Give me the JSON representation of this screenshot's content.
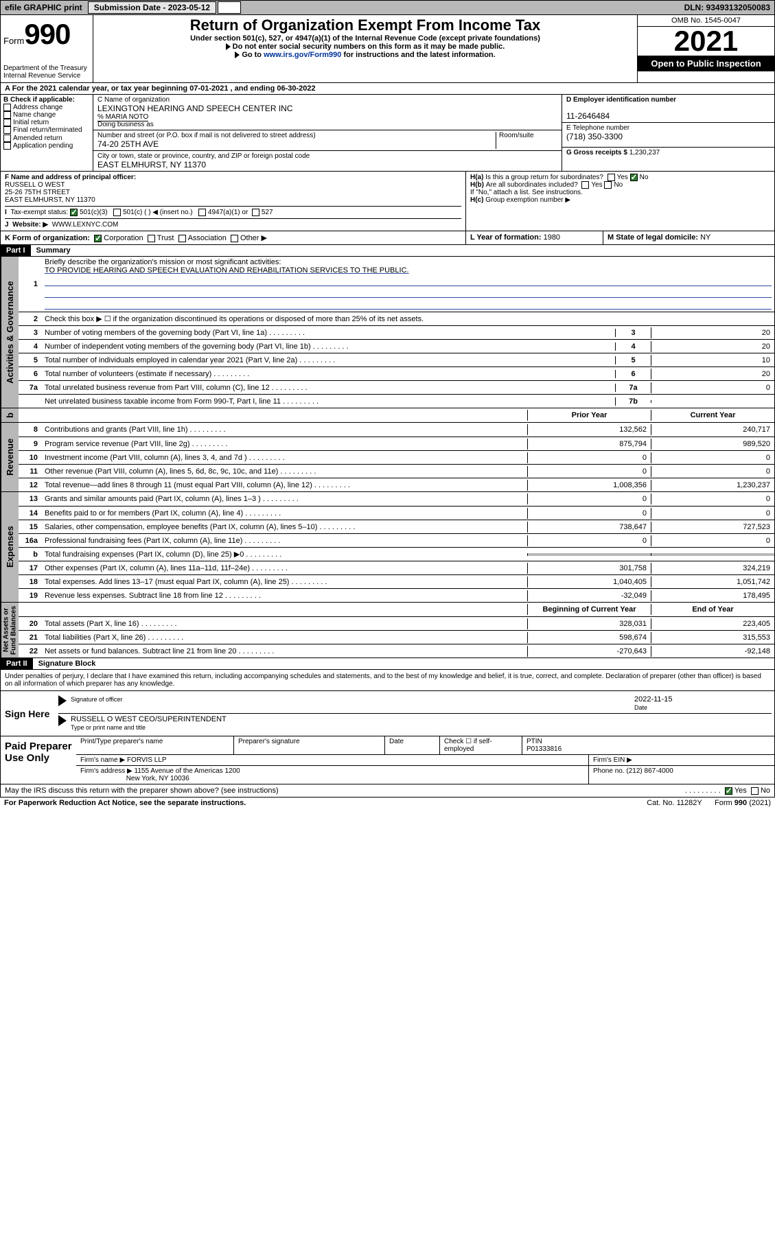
{
  "topbar": {
    "efile": "efile GRAPHIC print",
    "submit_label": "Submission Date - 2023-05-12",
    "dln": "DLN: 93493132050083"
  },
  "header": {
    "form_prefix": "Form",
    "form_num": "990",
    "dept": "Department of the Treasury\nInternal Revenue Service",
    "title": "Return of Organization Exempt From Income Tax",
    "sub1": "Under section 501(c), 527, or 4947(a)(1) of the Internal Revenue Code (except private foundations)",
    "sub2": "Do not enter social security numbers on this form as it may be made public.",
    "sub3_pre": "Go to ",
    "sub3_link": "www.irs.gov/Form990",
    "sub3_post": " for instructions and the latest information.",
    "omb": "OMB No. 1545-0047",
    "year": "2021",
    "open": "Open to Public Inspection"
  },
  "rowA": "A For the 2021 calendar year, or tax year beginning 07-01-2021   , and ending 06-30-2022",
  "sectionB": {
    "label": "B Check if applicable:",
    "items": [
      "Address change",
      "Name change",
      "Initial return",
      "Final return/terminated",
      "Amended return",
      "Application pending"
    ]
  },
  "sectionC": {
    "c_label": "C Name of organization",
    "c_name": "LEXINGTON HEARING AND SPEECH CENTER INC",
    "care_of": "% MARIA NOTO",
    "dba_label": "Doing business as",
    "street_label": "Number and street (or P.O. box if mail is not delivered to street address)",
    "room_label": "Room/suite",
    "street": "74-20 25TH AVE",
    "city_label": "City or town, state or province, country, and ZIP or foreign postal code",
    "city": "EAST ELMHURST, NY  11370"
  },
  "sectionD": {
    "d_label": "D Employer identification number",
    "ein": "11-2646484",
    "e_label": "E Telephone number",
    "phone": "(718) 350-3300",
    "g_label": "G Gross receipts $",
    "gross": "1,230,237"
  },
  "sectionF": {
    "f_label": "F Name and address of principal officer:",
    "name": "RUSSELL O WEST",
    "addr1": "25-26 75TH STREET",
    "addr2": "EAST ELMHURST, NY  11370"
  },
  "sectionH": {
    "ha": "Is this a group return for subordinates?",
    "hb": "Are all subordinates included?",
    "hnote": "If \"No,\" attach a list. See instructions.",
    "hc": "Group exemption number ▶"
  },
  "rowI": {
    "label": "Tax-exempt status:",
    "opts": [
      "501(c)(3)",
      "501(c) (  ) ◀ (insert no.)",
      "4947(a)(1) or",
      "527"
    ]
  },
  "rowJ": {
    "label": "Website: ▶",
    "val": "WWW.LEXNYC.COM"
  },
  "rowK": {
    "label": "K Form of organization:",
    "opts": [
      "Corporation",
      "Trust",
      "Association",
      "Other ▶"
    ]
  },
  "rowL": {
    "label": "L Year of formation:",
    "val": "1980"
  },
  "rowM": {
    "label": "M State of legal domicile:",
    "val": "NY"
  },
  "part1": {
    "hdr": "Part I",
    "title": "Summary",
    "l1_label": "Briefly describe the organization's mission or most significant activities:",
    "l1_val": "TO PROVIDE HEARING AND SPEECH EVALUATION AND REHABILITATION SERVICES TO THE PUBLIC.",
    "l2": "Check this box ▶ ☐  if the organization discontinued its operations or disposed of more than 25% of its net assets.",
    "lines_gov": [
      {
        "n": "3",
        "t": "Number of voting members of the governing body (Part VI, line 1a)",
        "box": "3",
        "v": "20"
      },
      {
        "n": "4",
        "t": "Number of independent voting members of the governing body (Part VI, line 1b)",
        "box": "4",
        "v": "20"
      },
      {
        "n": "5",
        "t": "Total number of individuals employed in calendar year 2021 (Part V, line 2a)",
        "box": "5",
        "v": "10"
      },
      {
        "n": "6",
        "t": "Total number of volunteers (estimate if necessary)",
        "box": "6",
        "v": "20"
      },
      {
        "n": "7a",
        "t": "Total unrelated business revenue from Part VIII, column (C), line 12",
        "box": "7a",
        "v": "0"
      },
      {
        "n": "",
        "t": "Net unrelated business taxable income from Form 990-T, Part I, line 11",
        "box": "7b",
        "v": ""
      }
    ],
    "col_prior": "Prior Year",
    "col_curr": "Current Year",
    "lines_rev": [
      {
        "n": "8",
        "t": "Contributions and grants (Part VIII, line 1h)",
        "p": "132,562",
        "c": "240,717"
      },
      {
        "n": "9",
        "t": "Program service revenue (Part VIII, line 2g)",
        "p": "875,794",
        "c": "989,520"
      },
      {
        "n": "10",
        "t": "Investment income (Part VIII, column (A), lines 3, 4, and 7d )",
        "p": "0",
        "c": "0"
      },
      {
        "n": "11",
        "t": "Other revenue (Part VIII, column (A), lines 5, 6d, 8c, 9c, 10c, and 11e)",
        "p": "0",
        "c": "0"
      },
      {
        "n": "12",
        "t": "Total revenue—add lines 8 through 11 (must equal Part VIII, column (A), line 12)",
        "p": "1,008,356",
        "c": "1,230,237"
      }
    ],
    "lines_exp": [
      {
        "n": "13",
        "t": "Grants and similar amounts paid (Part IX, column (A), lines 1–3 )",
        "p": "0",
        "c": "0"
      },
      {
        "n": "14",
        "t": "Benefits paid to or for members (Part IX, column (A), line 4)",
        "p": "0",
        "c": "0"
      },
      {
        "n": "15",
        "t": "Salaries, other compensation, employee benefits (Part IX, column (A), lines 5–10)",
        "p": "738,647",
        "c": "727,523"
      },
      {
        "n": "16a",
        "t": "Professional fundraising fees (Part IX, column (A), line 11e)",
        "p": "0",
        "c": "0"
      },
      {
        "n": "b",
        "t": "Total fundraising expenses (Part IX, column (D), line 25) ▶0",
        "p": "",
        "c": "",
        "shade": true
      },
      {
        "n": "17",
        "t": "Other expenses (Part IX, column (A), lines 11a–11d, 11f–24e)",
        "p": "301,758",
        "c": "324,219"
      },
      {
        "n": "18",
        "t": "Total expenses. Add lines 13–17 (must equal Part IX, column (A), line 25)",
        "p": "1,040,405",
        "c": "1,051,742"
      },
      {
        "n": "19",
        "t": "Revenue less expenses. Subtract line 18 from line 12",
        "p": "-32,049",
        "c": "178,495"
      }
    ],
    "col_beg": "Beginning of Current Year",
    "col_end": "End of Year",
    "lines_net": [
      {
        "n": "20",
        "t": "Total assets (Part X, line 16)",
        "p": "328,031",
        "c": "223,405"
      },
      {
        "n": "21",
        "t": "Total liabilities (Part X, line 26)",
        "p": "598,674",
        "c": "315,553"
      },
      {
        "n": "22",
        "t": "Net assets or fund balances. Subtract line 21 from line 20",
        "p": "-270,643",
        "c": "-92,148"
      }
    ],
    "vtab_gov": "Activities & Governance",
    "vtab_rev": "Revenue",
    "vtab_exp": "Expenses",
    "vtab_net": "Net Assets or\nFund Balances"
  },
  "part2": {
    "hdr": "Part II",
    "title": "Signature Block",
    "decl": "Under penalties of perjury, I declare that I have examined this return, including accompanying schedules and statements, and to the best of my knowledge and belief, it is true, correct, and complete. Declaration of preparer (other than officer) is based on all information of which preparer has any knowledge.",
    "sign_here": "Sign Here",
    "sig_officer": "Signature of officer",
    "sig_date_lbl": "Date",
    "sig_date": "2022-11-15",
    "sig_name": "RUSSELL O WEST CEO/SUPERINTENDENT",
    "sig_name_lbl": "Type or print name and title",
    "paid": "Paid Preparer Use Only",
    "p_name_lbl": "Print/Type preparer's name",
    "p_sig_lbl": "Preparer's signature",
    "p_date_lbl": "Date",
    "p_check": "Check ☐ if self-employed",
    "p_ptin_lbl": "PTIN",
    "p_ptin": "P01333816",
    "firm_name_lbl": "Firm's name    ▶",
    "firm_name": "FORVIS LLP",
    "firm_ein_lbl": "Firm's EIN ▶",
    "firm_addr_lbl": "Firm's address ▶",
    "firm_addr1": "1155 Avenue of the Americas 1200",
    "firm_addr2": "New York, NY  10036",
    "firm_phone_lbl": "Phone no.",
    "firm_phone": "(212) 867-4000",
    "discuss": "May the IRS discuss this return with the preparer shown above? (see instructions)"
  },
  "footer": {
    "l": "For Paperwork Reduction Act Notice, see the separate instructions.",
    "c": "Cat. No. 11282Y",
    "r": "Form 990 (2021)"
  },
  "yesno": {
    "yes": "Yes",
    "no": "No"
  }
}
